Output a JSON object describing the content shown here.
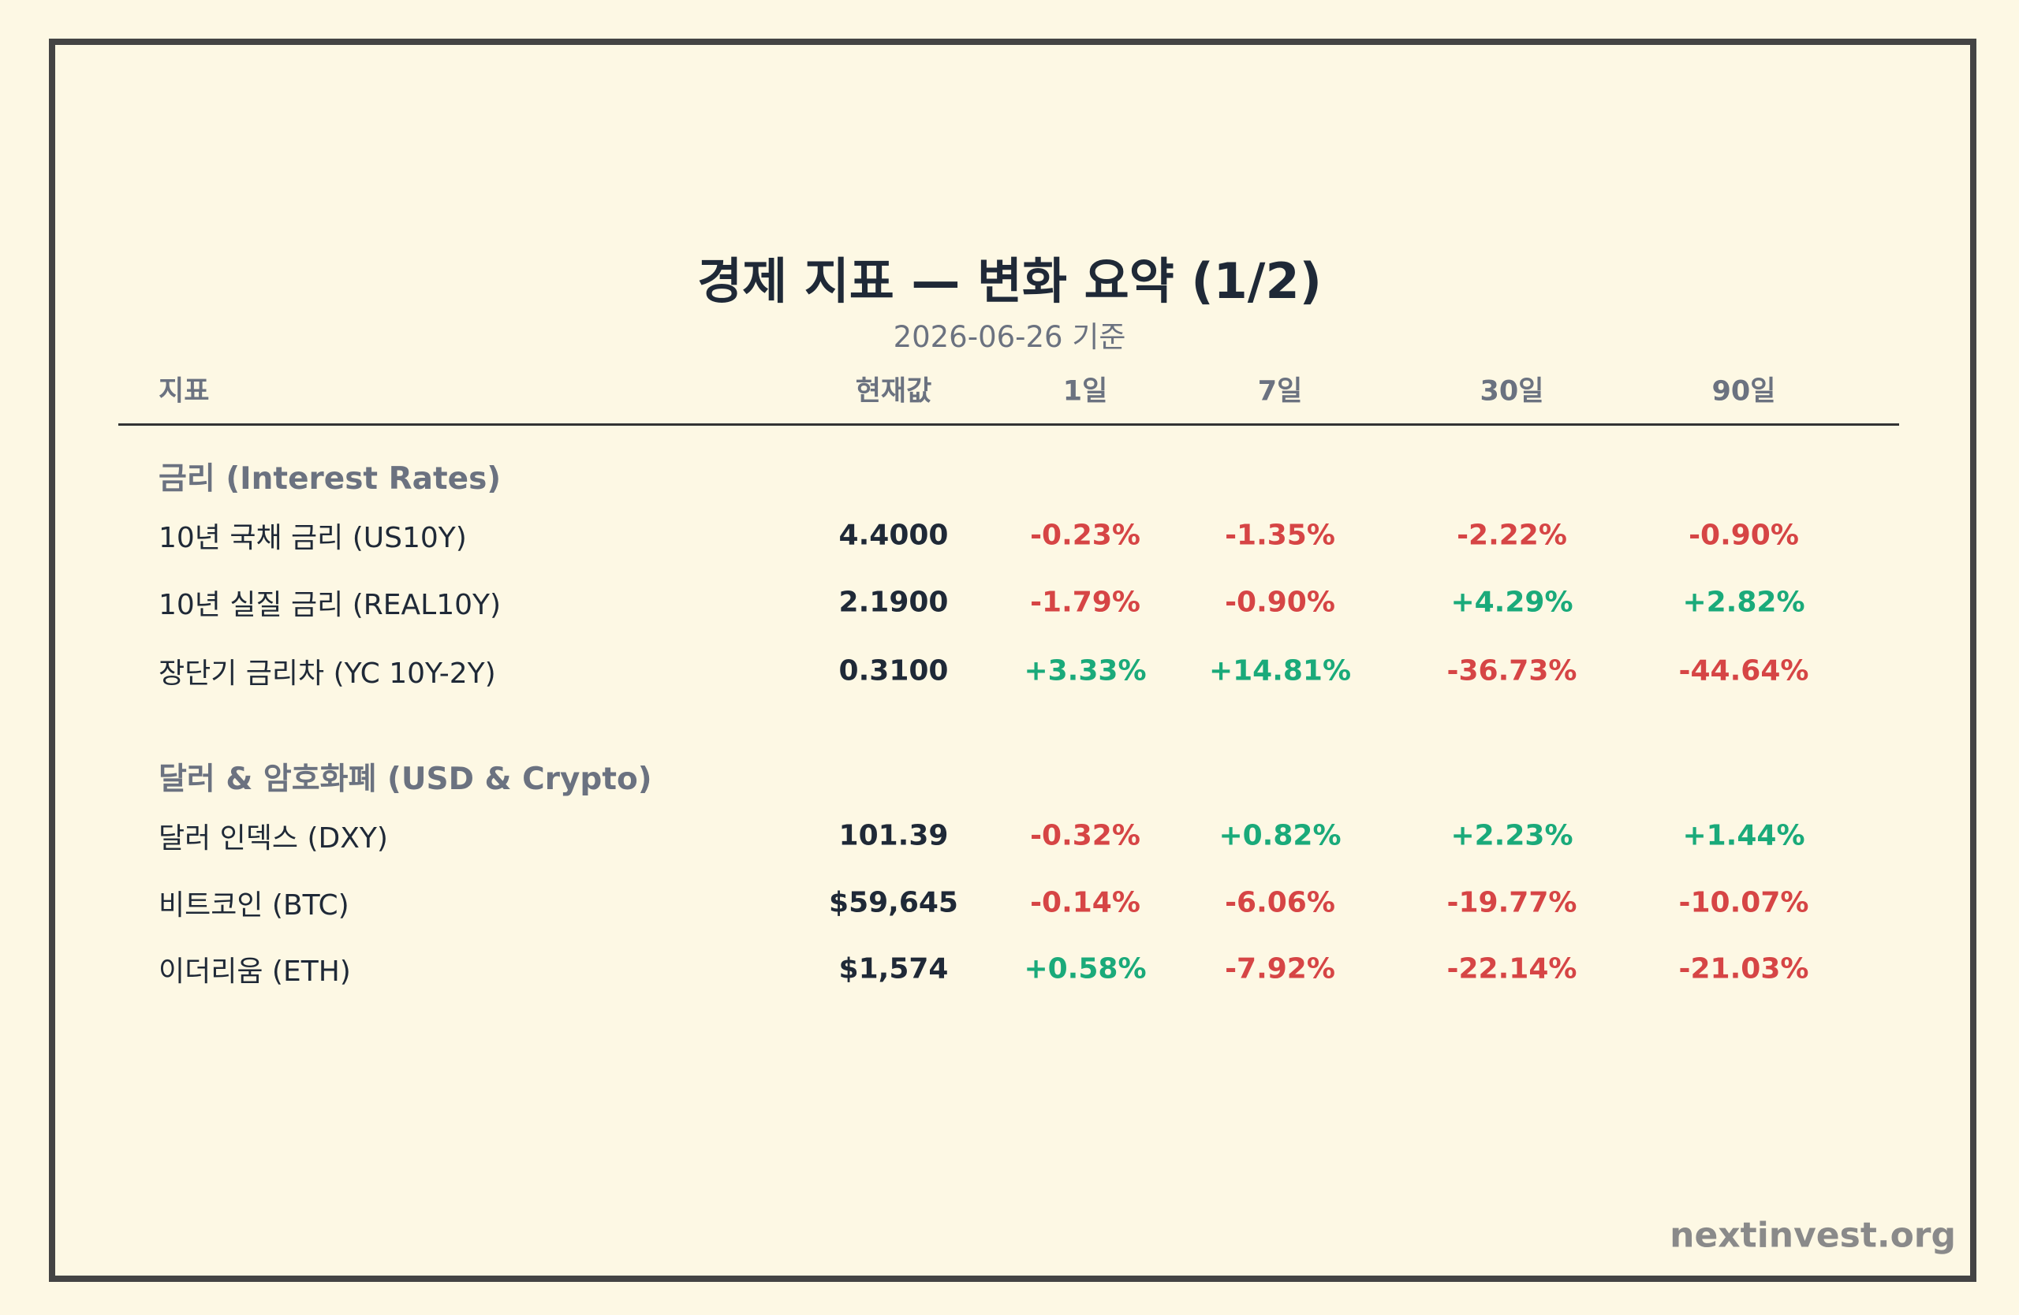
{
  "header": {
    "title": "경제 지표 — 변화 요약 (1/2)",
    "subtitle": "2026-06-26 기준"
  },
  "table": {
    "columns": [
      "지표",
      "현재값",
      "1일",
      "7일",
      "30일",
      "90일"
    ],
    "sections": [
      {
        "title": "금리 (Interest Rates)",
        "rows": [
          [
            "10년 국채 금리 (US10Y)",
            "4.4000",
            "-0.23%",
            "-1.35%",
            "-2.22%",
            "-0.90%"
          ],
          [
            "10년 실질 금리 (REAL10Y)",
            "2.1900",
            "-1.79%",
            "-0.90%",
            "+4.29%",
            "+2.82%"
          ],
          [
            "장단기 금리차 (YC 10Y-2Y)",
            "0.3100",
            "+3.33%",
            "+14.81%",
            "-36.73%",
            "-44.64%"
          ]
        ]
      },
      {
        "title": "달러 & 암호화폐 (USD & Crypto)",
        "rows": [
          [
            "달러 인덱스 (DXY)",
            "101.39",
            "-0.32%",
            "+0.82%",
            "+2.23%",
            "+1.44%"
          ],
          [
            "비트코인 (BTC)",
            "$59,645",
            "-0.14%",
            "-6.06%",
            "-19.77%",
            "-10.07%"
          ],
          [
            "이더리움 (ETH)",
            "$1,574",
            "+0.58%",
            "-7.92%",
            "-22.14%",
            "-21.03%"
          ]
        ]
      }
    ]
  },
  "footer": {
    "brand": "nextinvest.org"
  }
}
